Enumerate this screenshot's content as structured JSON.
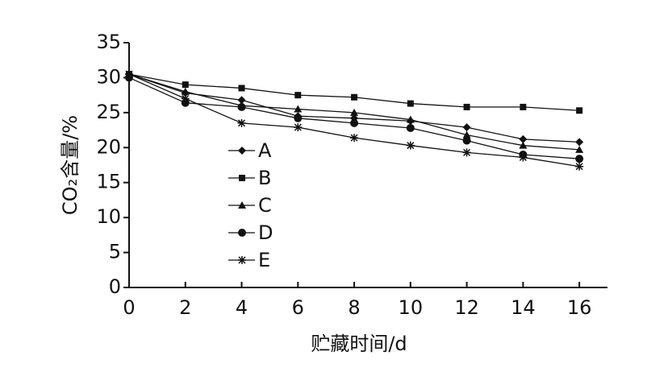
{
  "chart_data": {
    "type": "line",
    "x_label": "贮藏时间/d",
    "y_label": "CO₂含量/%",
    "x": [
      0,
      2,
      4,
      6,
      8,
      10,
      12,
      14,
      16
    ],
    "xlim": [
      0,
      17
    ],
    "xticks": [
      0,
      2,
      4,
      6,
      8,
      10,
      12,
      14,
      16
    ],
    "ylim": [
      0,
      35
    ],
    "yticks": [
      0,
      5,
      10,
      15,
      20,
      25,
      30,
      35
    ],
    "grid": false,
    "legend": "center-left",
    "series": [
      {
        "name": "A",
        "color": "#111111",
        "marker": "diamond",
        "values": [
          30.5,
          27.8,
          26.8,
          24.5,
          24.2,
          23.8,
          22.9,
          21.2,
          20.8
        ]
      },
      {
        "name": "B",
        "color": "#111111",
        "marker": "square",
        "values": [
          30.5,
          29,
          28.5,
          27.5,
          27.2,
          26.3,
          25.8,
          25.8,
          25.3
        ]
      },
      {
        "name": "C",
        "color": "#111111",
        "marker": "triangle",
        "values": [
          30.5,
          28,
          26,
          25.5,
          25,
          24,
          21.8,
          20.3,
          19.7
        ]
      },
      {
        "name": "D",
        "color": "#111111",
        "marker": "circle",
        "values": [
          30,
          26.4,
          25.8,
          24.2,
          23.5,
          22.8,
          21,
          19,
          18.4
        ]
      },
      {
        "name": "E",
        "color": "#111111",
        "marker": "star",
        "values": [
          30.5,
          27,
          23.5,
          22.9,
          21.4,
          20.3,
          19.3,
          18.6,
          17.3
        ]
      }
    ]
  }
}
